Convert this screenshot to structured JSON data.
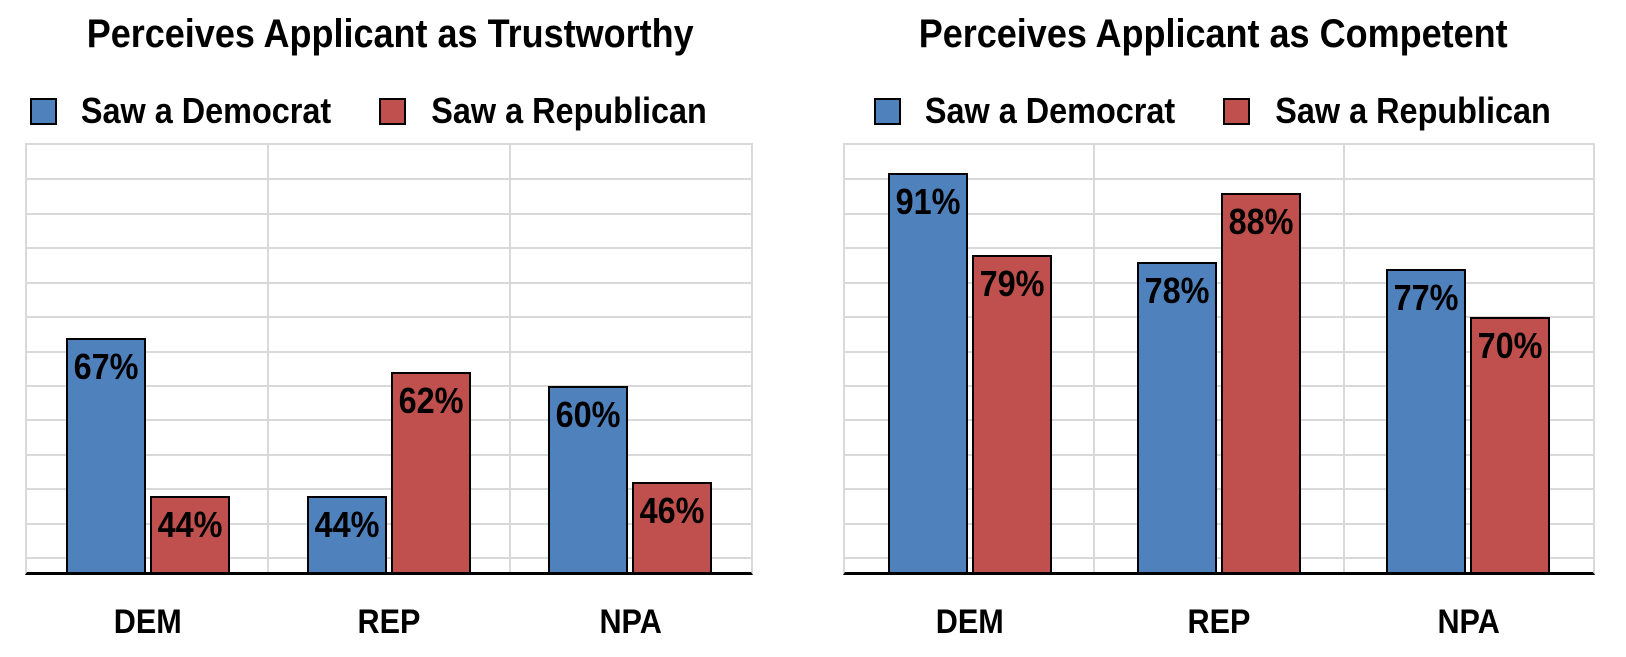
{
  "page": {
    "background": "#FFFFFF"
  },
  "style": {
    "bar_outline_color": "#000000",
    "gridline_color": "#D9D9D9",
    "axis_line_color": "#000000",
    "text_color": "#000000",
    "democrat_color": "#4F81BD",
    "republican_color": "#C0504D"
  },
  "chart_data": [
    {
      "type": "bar",
      "title": "Perceives Applicant as Trustworthy",
      "categories": [
        "DEM",
        "REP",
        "NPA"
      ],
      "series": [
        {
          "name": "Saw a Democrat",
          "color": "#4F81BD",
          "values": [
            67,
            44,
            60
          ],
          "labels": [
            "67%",
            "44%",
            "60%"
          ]
        },
        {
          "name": "Saw a Republican",
          "color": "#C0504D",
          "values": [
            44,
            62,
            46
          ],
          "labels": [
            "44%",
            "62%",
            "46%"
          ]
        }
      ],
      "xlabel": "",
      "ylabel": "",
      "ylim": [
        33,
        95
      ],
      "gridline_interval": 5,
      "grid": true,
      "y_tick_labels_shown": false,
      "legend_position": "top-left",
      "data_label_position": "inside-end"
    },
    {
      "type": "bar",
      "title": "Perceives Applicant as Competent",
      "categories": [
        "DEM",
        "REP",
        "NPA"
      ],
      "series": [
        {
          "name": "Saw a Democrat",
          "color": "#4F81BD",
          "values": [
            91,
            78,
            77
          ],
          "labels": [
            "91%",
            "78%",
            "77%"
          ]
        },
        {
          "name": "Saw a Republican",
          "color": "#C0504D",
          "values": [
            79,
            88,
            70
          ],
          "labels": [
            "79%",
            "88%",
            "70%"
          ]
        }
      ],
      "xlabel": "",
      "ylabel": "",
      "ylim": [
        33,
        95
      ],
      "gridline_interval": 5,
      "grid": true,
      "y_tick_labels_shown": false,
      "legend_position": "top-left",
      "data_label_position": "inside-end"
    }
  ]
}
